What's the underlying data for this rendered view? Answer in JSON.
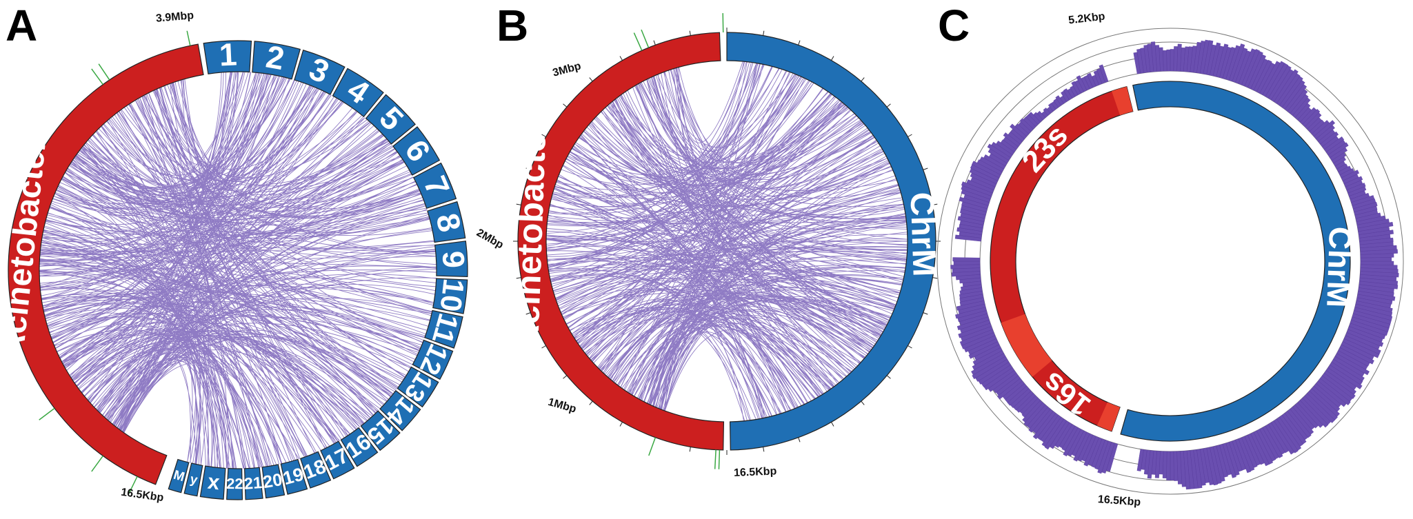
{
  "panels": [
    {
      "letter": "A",
      "red_label": "Acinetobacter",
      "blue_labels": [
        "1",
        "2",
        "3",
        "4",
        "5",
        "6",
        "7",
        "8",
        "9",
        "10",
        "11",
        "12",
        "13",
        "14",
        "15",
        "16",
        "17",
        "18",
        "19",
        "20",
        "21",
        "22",
        "x",
        "y",
        "M"
      ],
      "tick_labels": [
        "3.9Mbp",
        "2Mbp",
        "16.5Kbp"
      ]
    },
    {
      "letter": "B",
      "red_label": "Acinetobacter",
      "blue_label": "ChrM",
      "tick_labels": [
        "3Mbp",
        "1Mbp",
        "16.5Kbp"
      ]
    },
    {
      "letter": "C",
      "red_labels": [
        "23s",
        "16s"
      ],
      "blue_label": "ChrM",
      "tick_labels": [
        "5.2Kbp",
        "16.5Kbp"
      ]
    }
  ]
}
